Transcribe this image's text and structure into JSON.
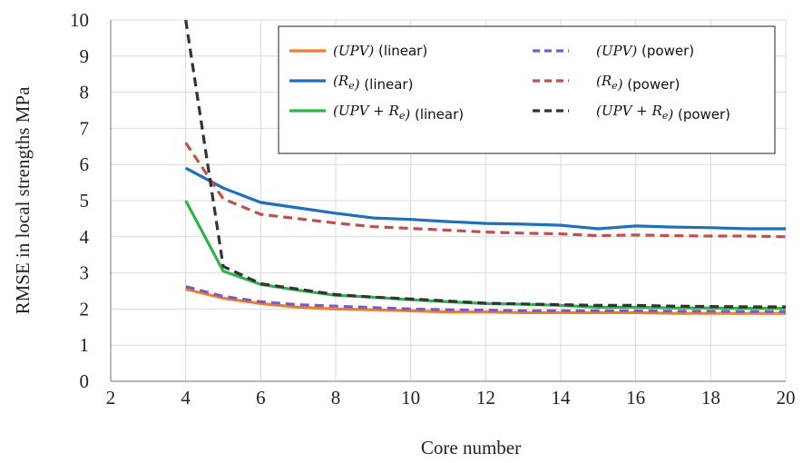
{
  "chart_data": {
    "type": "line",
    "xlabel": "Core number",
    "ylabel": "RMSE in local strengths MPa",
    "xlim": [
      2,
      20
    ],
    "ylim": [
      0,
      10
    ],
    "x_ticks": [
      "2",
      "4",
      "6",
      "8",
      "10",
      "12",
      "14",
      "16",
      "18",
      "20"
    ],
    "y_ticks": [
      "0",
      "1",
      "2",
      "3",
      "4",
      "5",
      "6",
      "7",
      "8",
      "9",
      "10"
    ],
    "grid": true,
    "legend_position": "top-right",
    "x": [
      4,
      5,
      6,
      7,
      8,
      9,
      10,
      11,
      12,
      13,
      14,
      15,
      16,
      17,
      18,
      19,
      20
    ],
    "series": [
      {
        "name": "(UPV)",
        "note": "(linear)",
        "color": "#ED7D31",
        "dash": "solid",
        "values": [
          2.55,
          2.3,
          2.15,
          2.05,
          2.0,
          1.98,
          1.95,
          1.92,
          1.92,
          1.9,
          1.9,
          1.9,
          1.9,
          1.88,
          1.88,
          1.88,
          1.88
        ]
      },
      {
        "name": "(R_e)",
        "note": "(linear)",
        "color": "#1F6FBF",
        "dash": "solid",
        "values": [
          5.9,
          5.35,
          4.95,
          4.8,
          4.65,
          4.52,
          4.48,
          4.42,
          4.37,
          4.35,
          4.32,
          4.22,
          4.3,
          4.27,
          4.25,
          4.22,
          4.22
        ]
      },
      {
        "name": "(UPV + R_e)",
        "note": "(linear)",
        "color": "#2DB34A",
        "dash": "solid",
        "values": [
          5.0,
          3.05,
          2.68,
          2.52,
          2.38,
          2.33,
          2.26,
          2.2,
          2.15,
          2.13,
          2.1,
          2.05,
          2.05,
          2.03,
          2.03,
          2.02,
          2.02
        ]
      },
      {
        "name": "(UPV)",
        "note": "(power)",
        "color": "#7B5CC4",
        "dash": "dashed",
        "values": [
          2.62,
          2.35,
          2.2,
          2.12,
          2.08,
          2.04,
          2.0,
          1.98,
          1.97,
          1.95,
          1.95,
          1.95,
          1.95,
          1.94,
          1.94,
          1.93,
          1.93
        ]
      },
      {
        "name": "(R_e)",
        "note": "(power)",
        "color": "#C0504D",
        "dash": "dashed",
        "values": [
          6.6,
          5.05,
          4.62,
          4.5,
          4.38,
          4.28,
          4.23,
          4.18,
          4.13,
          4.1,
          4.08,
          4.03,
          4.05,
          4.03,
          4.02,
          4.02,
          4.0
        ]
      },
      {
        "name": "(UPV + R_e)",
        "note": "(power)",
        "color": "#333333",
        "dash": "dashed",
        "values": [
          10.0,
          3.18,
          2.7,
          2.55,
          2.4,
          2.33,
          2.28,
          2.22,
          2.16,
          2.14,
          2.12,
          2.1,
          2.1,
          2.08,
          2.07,
          2.06,
          2.06
        ]
      }
    ]
  }
}
